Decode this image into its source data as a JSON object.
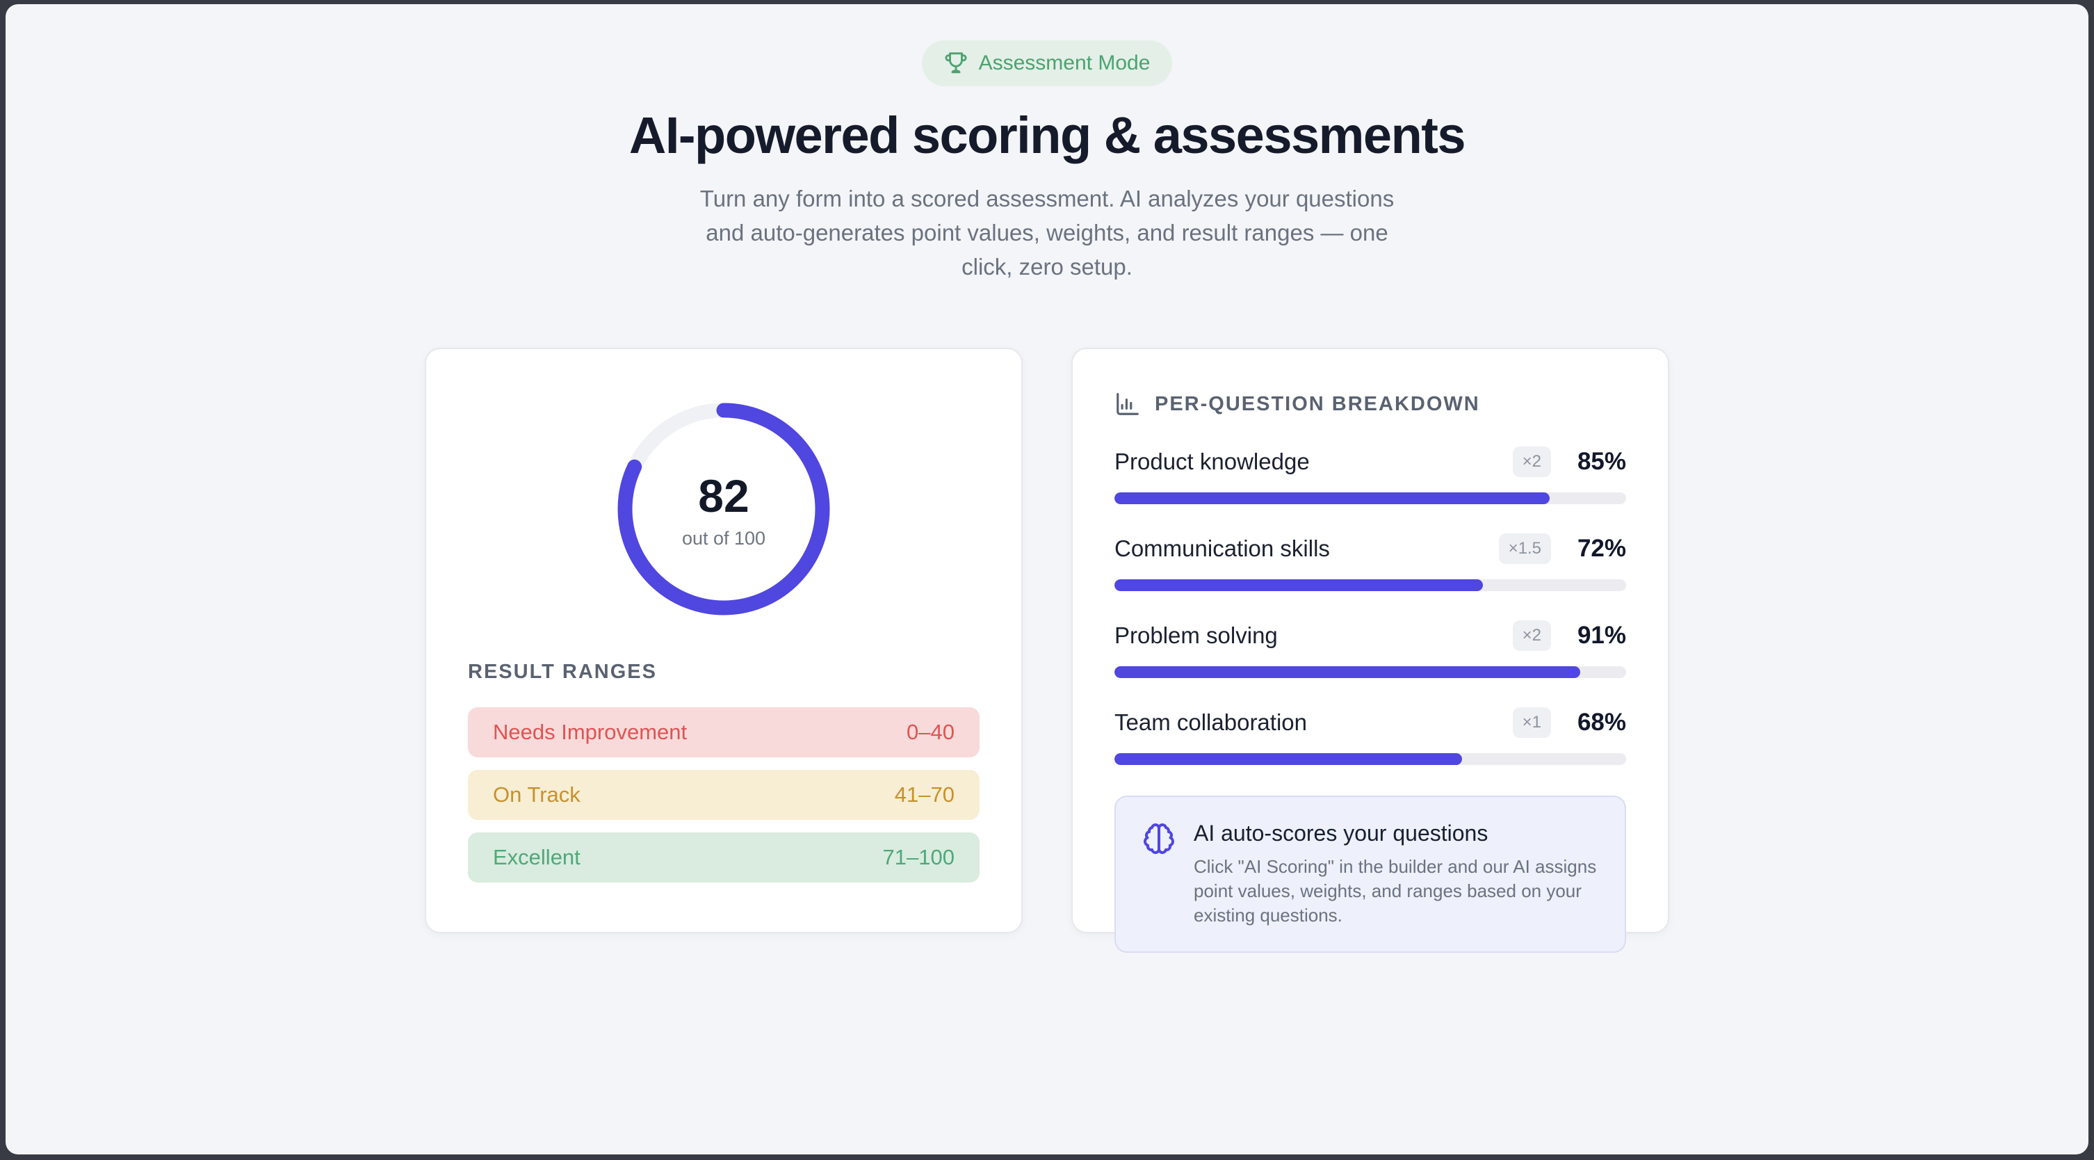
{
  "hero": {
    "badge_label": "Assessment Mode",
    "title": "AI-powered scoring & assessments",
    "subtitle": "Turn any form into a scored assessment. AI analyzes your questions and auto-generates point values, weights, and result ranges — one click, zero setup."
  },
  "score_card": {
    "score": "82",
    "score_caption": "out of 100",
    "score_percent": 82,
    "ranges_heading": "RESULT RANGES",
    "ranges": [
      {
        "label": "Needs Improvement",
        "range": "0–40",
        "bg": "#f8dada",
        "color": "#df5454"
      },
      {
        "label": "On Track",
        "range": "41–70",
        "bg": "#f7eed4",
        "color": "#c8912c"
      },
      {
        "label": "Excellent",
        "range": "71–100",
        "bg": "#d9ecdf",
        "color": "#4fa879"
      }
    ]
  },
  "breakdown_card": {
    "heading": "PER-QUESTION BREAKDOWN",
    "questions": [
      {
        "label": "Product knowledge",
        "weight": "×2",
        "percent": "85%",
        "value": 85
      },
      {
        "label": "Communication skills",
        "weight": "×1.5",
        "percent": "72%",
        "value": 72
      },
      {
        "label": "Problem solving",
        "weight": "×2",
        "percent": "91%",
        "value": 91
      },
      {
        "label": "Team collaboration",
        "weight": "×1",
        "percent": "68%",
        "value": 68
      }
    ],
    "callout": {
      "title": "AI auto-scores your questions",
      "body": "Click \"AI Scoring\" in the builder and our AI assigns point values, weights, and ranges based on your existing questions."
    }
  },
  "chart_data": {
    "type": "bar",
    "title": "Per-question breakdown",
    "categories": [
      "Product knowledge",
      "Communication skills",
      "Problem solving",
      "Team collaboration"
    ],
    "values": [
      85,
      72,
      91,
      68
    ],
    "weights": [
      2,
      1.5,
      2,
      1
    ],
    "donut": {
      "value": 82,
      "max": 100
    }
  },
  "colors": {
    "accent": "#5046e0",
    "ring_track": "#f0f1f4",
    "badge_green": "#4ba36e",
    "badge_green_bg": "#e4efe8",
    "page_bg": "#f4f5f8",
    "frame_bg": "#383b43"
  }
}
